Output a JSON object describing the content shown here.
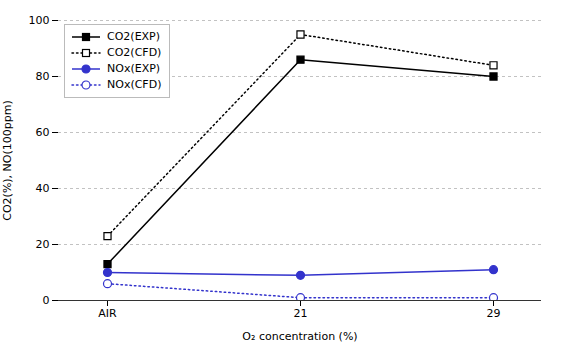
{
  "chart_data": {
    "type": "line",
    "xlabel": "O₂ concentration (%)",
    "ylabel": "CO2(%), NO(100ppm)",
    "categories": [
      "AIR",
      "21",
      "29"
    ],
    "series": [
      {
        "name": "CO2(EXP)",
        "color": "#000000",
        "values": [
          13,
          86,
          80
        ],
        "marker": "square",
        "line_style": "solid"
      },
      {
        "name": "CO2(CFD)",
        "color": "#000000",
        "values": [
          23,
          95,
          84
        ],
        "marker": "open-square",
        "line_style": "dotted"
      },
      {
        "name": "NOx(EXP)",
        "color": "#3333cc",
        "values": [
          10,
          9,
          11
        ],
        "marker": "circle",
        "line_style": "solid"
      },
      {
        "name": "NOx(CFD)",
        "color": "#3333cc",
        "values": [
          6,
          1,
          1
        ],
        "marker": "open-circle",
        "line_style": "dotted"
      }
    ],
    "ylim": [
      0,
      100
    ],
    "yticks": [
      0,
      20,
      40,
      60,
      80,
      100
    ],
    "grid": true,
    "legend": "upper left"
  }
}
